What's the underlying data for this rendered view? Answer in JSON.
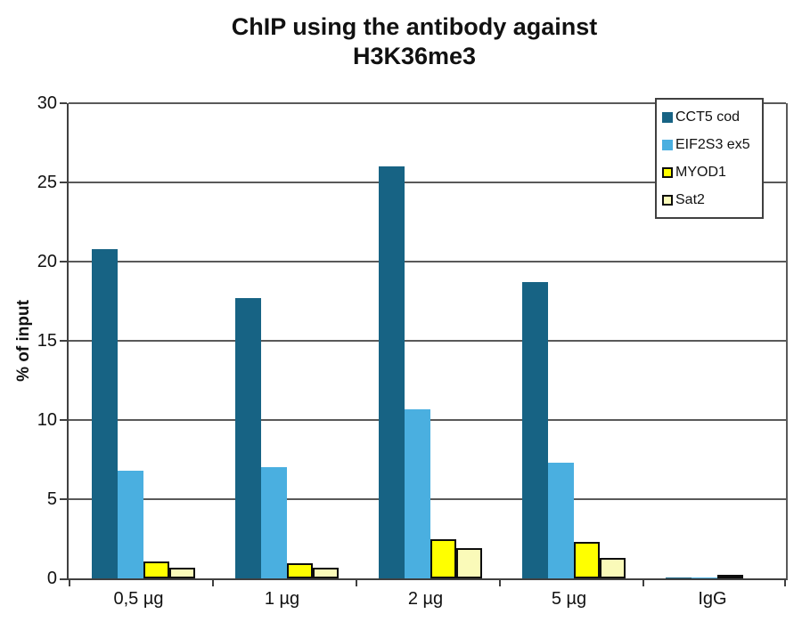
{
  "chart": {
    "title_line1": "ChIP using the antibody against",
    "title_line2": "H3K36me3",
    "y_axis_label": "% of input"
  },
  "chart_data": {
    "type": "bar",
    "title": "ChIP using the antibody against H3K36me3",
    "xlabel": "",
    "ylabel": "% of input",
    "ylim": [
      0,
      30
    ],
    "yticks": [
      0,
      5,
      10,
      15,
      20,
      25,
      30
    ],
    "grid": "horizontal-major",
    "legend_position": "top-right-inside",
    "categories": [
      "0,5 µg",
      "1 µg",
      "2 µg",
      "5 µg",
      "IgG"
    ],
    "series": [
      {
        "name": "CCT5 cod",
        "color": "#176384",
        "border": null,
        "values": [
          20.8,
          17.7,
          26.0,
          18.7,
          0.07
        ]
      },
      {
        "name": "EIF2S3 ex5",
        "color": "#4AAFE0",
        "border": null,
        "values": [
          6.8,
          7.0,
          10.7,
          7.3,
          0.08
        ]
      },
      {
        "name": "MYOD1",
        "color": "#FFFF00",
        "border": "#0D0D0D",
        "values": [
          1.05,
          0.95,
          2.5,
          2.3,
          0
        ]
      },
      {
        "name": "Sat2",
        "color": "#FAFAB9",
        "border": "#0D0D0D",
        "values": [
          0.7,
          0.7,
          1.9,
          1.3,
          0.12
        ]
      }
    ],
    "colors": {
      "axis": "#404040",
      "gridline": "#595959",
      "text": "#111111",
      "plot_background": "#FFFFFF"
    }
  }
}
